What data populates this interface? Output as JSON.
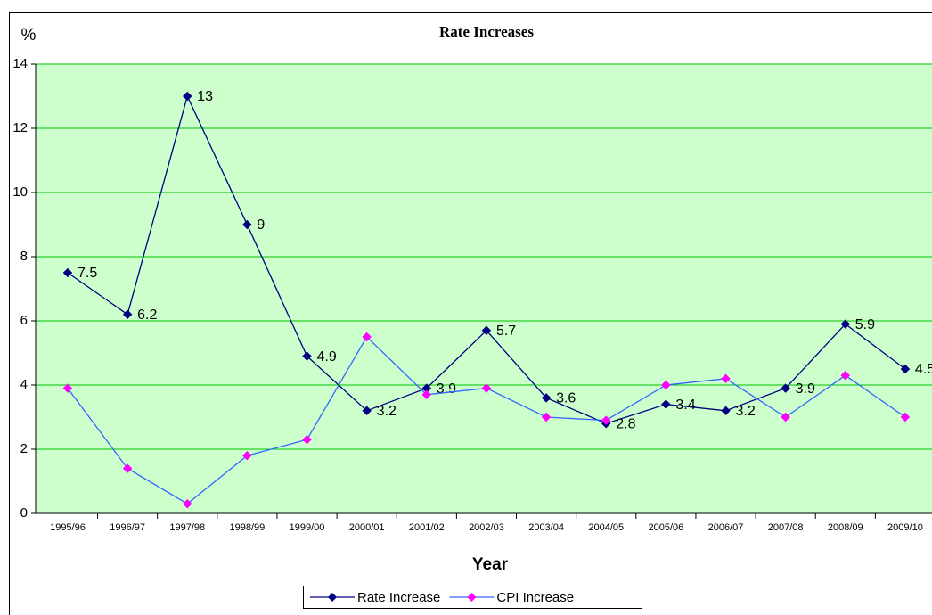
{
  "chart_data": {
    "type": "line",
    "title": "Rate Increases",
    "y_label": "%",
    "x_label": "Year",
    "categories": [
      "1995/96",
      "1996/97",
      "1997/98",
      "1998/99",
      "1999/00",
      "2000/01",
      "2001/02",
      "2002/03",
      "2003/04",
      "2004/05",
      "2005/06",
      "2006/07",
      "2007/08",
      "2008/09",
      "2009/10"
    ],
    "series": [
      {
        "name": "Rate Increase",
        "color": "#000080",
        "marker_color": "#000080",
        "data_labels": true,
        "values": [
          7.5,
          6.2,
          13,
          9,
          4.9,
          3.2,
          3.9,
          5.7,
          3.6,
          2.8,
          3.4,
          3.2,
          3.9,
          5.9,
          4.5
        ]
      },
      {
        "name": "CPI Increase",
        "color": "#3366ff",
        "marker_color": "#ff00ff",
        "data_labels": false,
        "values": [
          3.9,
          1.4,
          0.3,
          1.8,
          2.3,
          5.5,
          3.7,
          3.9,
          3.0,
          2.9,
          4.0,
          4.2,
          3.0,
          4.3,
          3.0
        ]
      }
    ],
    "ylim": [
      0,
      14
    ],
    "yticks": [
      0,
      2,
      4,
      6,
      8,
      10,
      12,
      14
    ],
    "grid": true,
    "grid_color": "#00c000",
    "plot_background": "#ccffcc",
    "legend": "bottom"
  }
}
